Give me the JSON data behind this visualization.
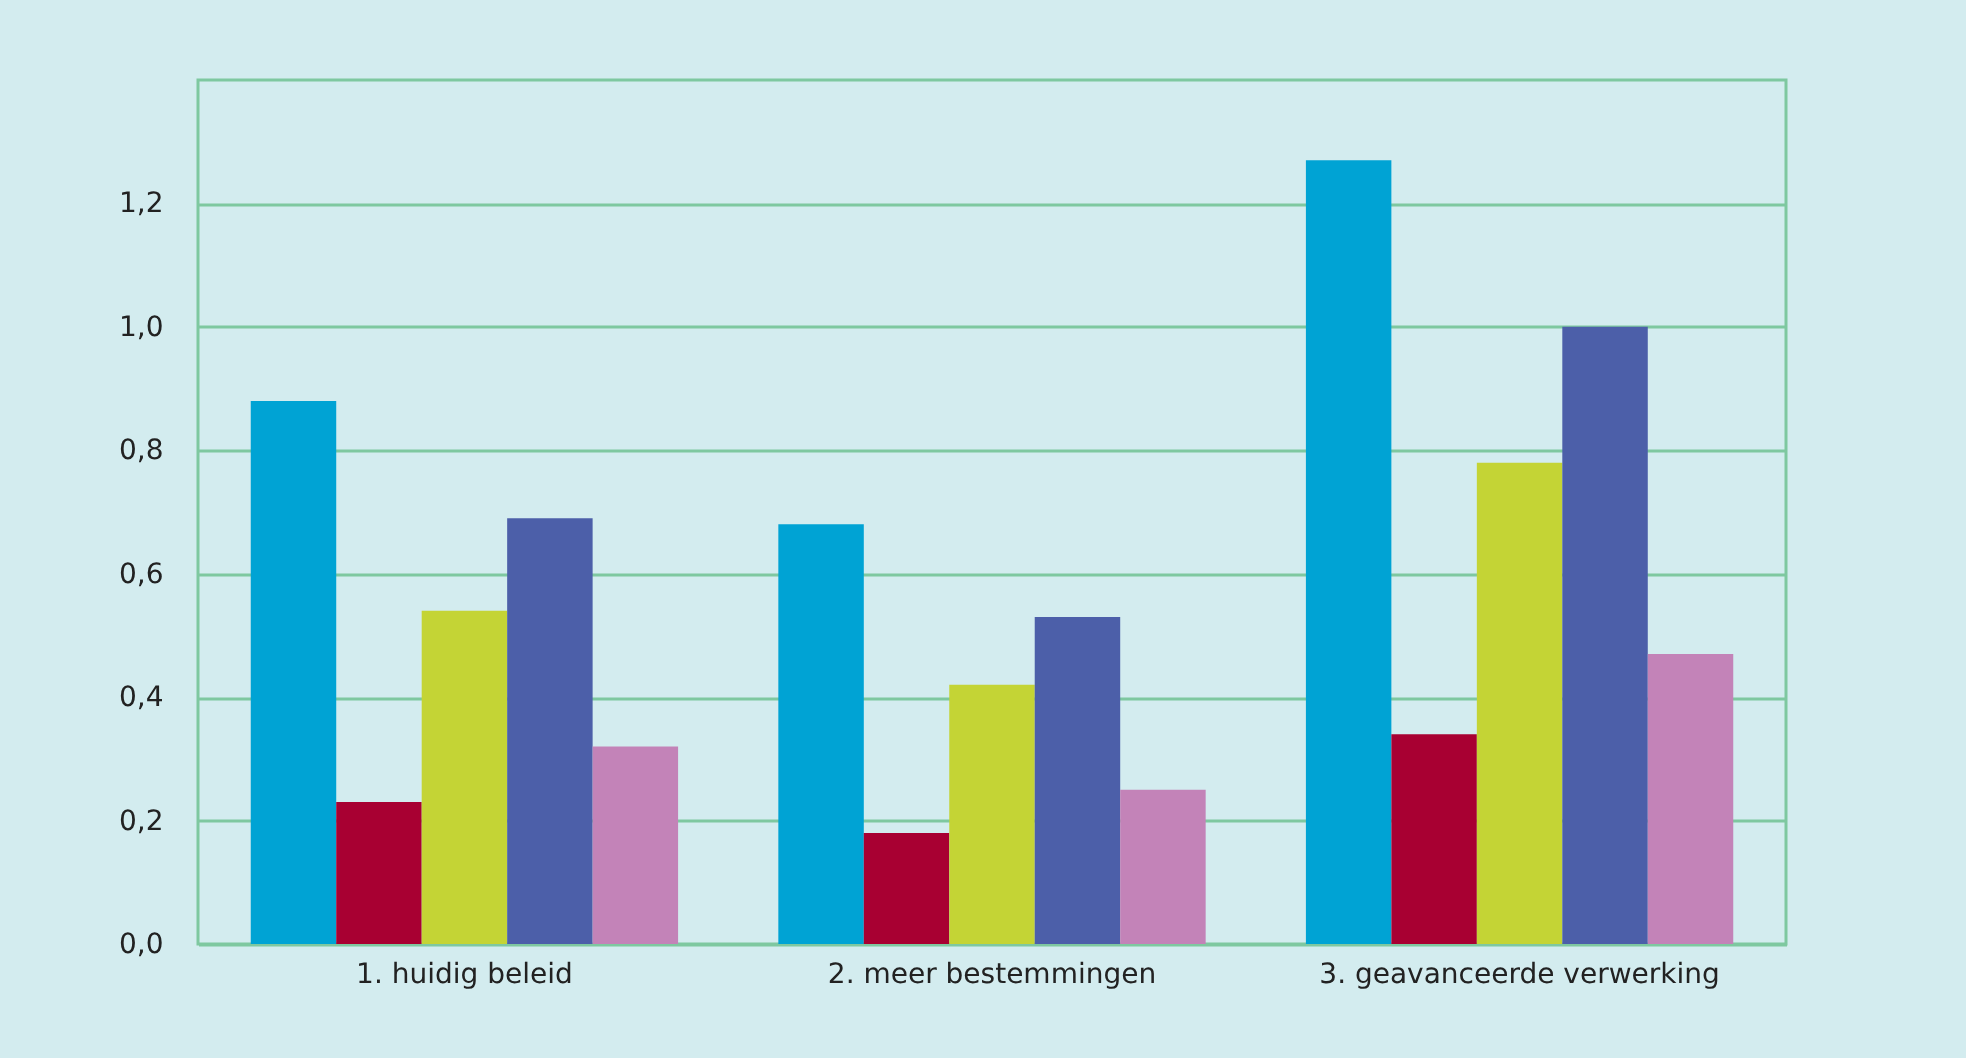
{
  "chart_data": {
    "type": "bar",
    "categories": [
      "1. huidig beleid",
      "2. meer bestemmingen",
      "3. geavanceerde verwerking"
    ],
    "series": [
      {
        "color": "#00a3d4",
        "values": [
          0.88,
          0.68,
          1.27
        ]
      },
      {
        "color": "#a80032",
        "values": [
          0.23,
          0.18,
          0.34
        ]
      },
      {
        "color": "#c4d435",
        "values": [
          0.54,
          0.42,
          0.78
        ]
      },
      {
        "color": "#4c5fa9",
        "values": [
          0.69,
          0.53,
          1.0
        ]
      },
      {
        "color": "#c383b8",
        "values": [
          0.32,
          0.25,
          0.47
        ]
      }
    ],
    "ylim": [
      0,
      1.4
    ],
    "yticks": [
      {
        "value": 0,
        "label": "0,0"
      },
      {
        "value": 0.2,
        "label": "0,2"
      },
      {
        "value": 0.4,
        "label": "0,4"
      },
      {
        "value": 0.6,
        "label": "0,6"
      },
      {
        "value": 0.8,
        "label": "0,8"
      },
      {
        "value": 1.0,
        "label": "1,0"
      },
      {
        "value": 1.2,
        "label": "1,2"
      }
    ],
    "grid": true,
    "legend": false
  }
}
